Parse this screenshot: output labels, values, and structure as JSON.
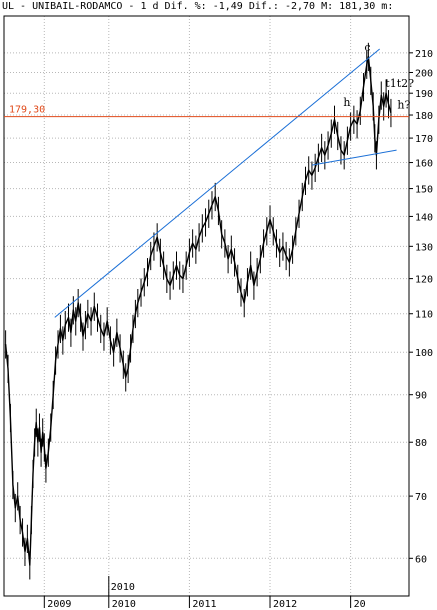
{
  "header": {
    "text": "UL - UNIBAIL-RODAMCO -  1 d Dif. %: -1,49 Dif.: -2,70 M: 181,30 m:"
  },
  "colors": {
    "price": "#000000",
    "trendline": "#1a6fd6",
    "horizontal_line": "#e04a1a",
    "grid": "#b8b8b8",
    "background": "#ffffff"
  },
  "chart_data": {
    "type": "line",
    "title": "UL - UNIBAIL-RODAMCO",
    "scale": "log",
    "ylim": [
      57,
      212
    ],
    "yticks": [
      60,
      70,
      80,
      90,
      100,
      110,
      120,
      130,
      140,
      150,
      160,
      170,
      180,
      190,
      200,
      210
    ],
    "xticks": [
      {
        "label": "2009",
        "t": 0.2
      },
      {
        "label": "2010",
        "t": 1.0
      },
      {
        "label": "2011",
        "t": 2.0
      },
      {
        "label": "2012",
        "t": 3.0
      },
      {
        "label": "20",
        "t": 4.0
      }
    ],
    "marker_label": {
      "label": "2010",
      "t": 1.0
    },
    "series": [
      {
        "points": [
          [
            -0.28,
            102
          ],
          [
            -0.25,
            96
          ],
          [
            -0.22,
            85
          ],
          [
            -0.19,
            72
          ],
          [
            -0.16,
            68
          ],
          [
            -0.13,
            70
          ],
          [
            -0.1,
            66
          ],
          [
            -0.07,
            64
          ],
          [
            -0.04,
            61
          ],
          [
            -0.01,
            63
          ],
          [
            0.02,
            59
          ],
          [
            0.04,
            66
          ],
          [
            0.06,
            74
          ],
          [
            0.08,
            80
          ],
          [
            0.1,
            84
          ],
          [
            0.12,
            80
          ],
          [
            0.14,
            83
          ],
          [
            0.16,
            78
          ],
          [
            0.18,
            82
          ],
          [
            0.2,
            79
          ],
          [
            0.22,
            75
          ],
          [
            0.25,
            78
          ],
          [
            0.28,
            83
          ],
          [
            0.31,
            90
          ],
          [
            0.34,
            98
          ],
          [
            0.37,
            102
          ],
          [
            0.4,
            106
          ],
          [
            0.43,
            103
          ],
          [
            0.46,
            107
          ],
          [
            0.5,
            109
          ],
          [
            0.53,
            105
          ],
          [
            0.56,
            111
          ],
          [
            0.59,
            108
          ],
          [
            0.62,
            113
          ],
          [
            0.65,
            109
          ],
          [
            0.68,
            104
          ],
          [
            0.71,
            107
          ],
          [
            0.74,
            110
          ],
          [
            0.78,
            108
          ],
          [
            0.82,
            112
          ],
          [
            0.86,
            109
          ],
          [
            0.9,
            106
          ],
          [
            0.94,
            104
          ],
          [
            0.98,
            108
          ],
          [
            1.02,
            103
          ],
          [
            1.06,
            100
          ],
          [
            1.1,
            105
          ],
          [
            1.14,
            101
          ],
          [
            1.18,
            97
          ],
          [
            1.21,
            94
          ],
          [
            1.24,
            96
          ],
          [
            1.27,
            101
          ],
          [
            1.3,
            106
          ],
          [
            1.33,
            110
          ],
          [
            1.36,
            113
          ],
          [
            1.4,
            116
          ],
          [
            1.44,
            119
          ],
          [
            1.48,
            122
          ],
          [
            1.52,
            127
          ],
          [
            1.56,
            130
          ],
          [
            1.6,
            133
          ],
          [
            1.64,
            128
          ],
          [
            1.68,
            124
          ],
          [
            1.72,
            120
          ],
          [
            1.76,
            118
          ],
          [
            1.8,
            121
          ],
          [
            1.84,
            124
          ],
          [
            1.88,
            121
          ],
          [
            1.92,
            120
          ],
          [
            1.96,
            124
          ],
          [
            2.0,
            128
          ],
          [
            2.04,
            131
          ],
          [
            2.08,
            129
          ],
          [
            2.12,
            133
          ],
          [
            2.16,
            136
          ],
          [
            2.2,
            138
          ],
          [
            2.24,
            141
          ],
          [
            2.28,
            144
          ],
          [
            2.32,
            147
          ],
          [
            2.36,
            142
          ],
          [
            2.4,
            134
          ],
          [
            2.44,
            131
          ],
          [
            2.48,
            126
          ],
          [
            2.52,
            129
          ],
          [
            2.56,
            125
          ],
          [
            2.6,
            120
          ],
          [
            2.64,
            116
          ],
          [
            2.68,
            113
          ],
          [
            2.72,
            119
          ],
          [
            2.76,
            124
          ],
          [
            2.8,
            118
          ],
          [
            2.84,
            122
          ],
          [
            2.88,
            126
          ],
          [
            2.92,
            131
          ],
          [
            2.96,
            135
          ],
          [
            3.0,
            139
          ],
          [
            3.04,
            135
          ],
          [
            3.08,
            131
          ],
          [
            3.12,
            128
          ],
          [
            3.16,
            130
          ],
          [
            3.2,
            127
          ],
          [
            3.24,
            125
          ],
          [
            3.28,
            129
          ],
          [
            3.32,
            135
          ],
          [
            3.36,
            141
          ],
          [
            3.4,
            147
          ],
          [
            3.44,
            153
          ],
          [
            3.48,
            157
          ],
          [
            3.52,
            155
          ],
          [
            3.56,
            158
          ],
          [
            3.6,
            162
          ],
          [
            3.64,
            166
          ],
          [
            3.68,
            163
          ],
          [
            3.72,
            167
          ],
          [
            3.76,
            172
          ],
          [
            3.8,
            178
          ],
          [
            3.84,
            171
          ],
          [
            3.88,
            165
          ],
          [
            3.92,
            163
          ],
          [
            3.96,
            169
          ],
          [
            4.0,
            175
          ],
          [
            4.04,
            178
          ],
          [
            4.08,
            176
          ],
          [
            4.12,
            182
          ],
          [
            4.16,
            193
          ],
          [
            4.2,
            204
          ],
          [
            4.22,
            208
          ],
          [
            4.25,
            196
          ],
          [
            4.28,
            184
          ],
          [
            4.3,
            170
          ],
          [
            4.32,
            163
          ],
          [
            4.35,
            178
          ],
          [
            4.38,
            189
          ],
          [
            4.41,
            184
          ],
          [
            4.44,
            190
          ],
          [
            4.47,
            185
          ],
          [
            4.5,
            181
          ]
        ]
      }
    ],
    "trendlines": [
      {
        "from": [
          0.33,
          109
        ],
        "to": [
          4.36,
          212
        ]
      },
      {
        "from": [
          3.52,
          159
        ],
        "to": [
          4.57,
          165
        ]
      }
    ],
    "horizontal_line": {
      "value": 179.3,
      "label": "179,30"
    },
    "annotations": [
      {
        "text": "h",
        "t": 3.91,
        "v": 184
      },
      {
        "text": "c",
        "t": 4.17,
        "v": 211
      },
      {
        "text": "t1t2?",
        "t": 4.43,
        "v": 193
      },
      {
        "text": "h?",
        "t": 4.58,
        "v": 183
      }
    ]
  }
}
